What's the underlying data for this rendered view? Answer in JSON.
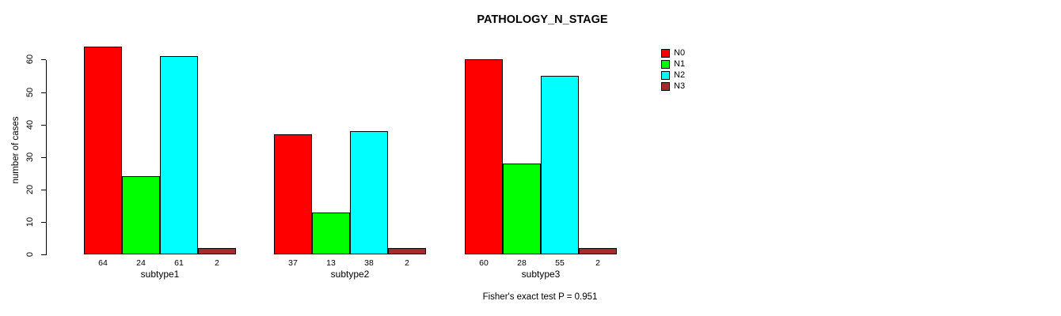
{
  "chart_data": {
    "type": "bar",
    "title": "PATHOLOGY_N_STAGE",
    "xlabel": "",
    "ylabel": "number of cases",
    "categories": [
      "subtype1",
      "subtype2",
      "subtype3"
    ],
    "series": [
      {
        "name": "N0",
        "color": "#FF0000",
        "values": [
          64,
          37,
          60
        ]
      },
      {
        "name": "N1",
        "color": "#00FF00",
        "values": [
          24,
          13,
          28
        ]
      },
      {
        "name": "N2",
        "color": "#00FFFF",
        "values": [
          61,
          38,
          55
        ]
      },
      {
        "name": "N3",
        "color": "#A52A2A",
        "values": [
          2,
          2,
          2
        ]
      }
    ],
    "y_ticks": [
      0,
      10,
      20,
      30,
      40,
      50,
      60
    ],
    "ylim": [
      0,
      64
    ],
    "grid": false,
    "legend_position": "right",
    "bar_value_labels_shown": true,
    "annotation": "Fisher's exact test P = 0.951"
  }
}
